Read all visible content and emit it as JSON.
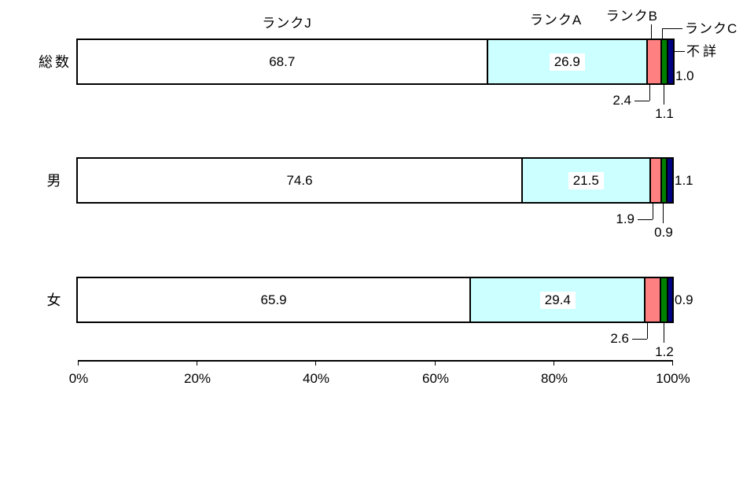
{
  "chart_data": {
    "type": "bar",
    "orientation": "horizontal",
    "stacked": true,
    "unit": "percent",
    "title": "",
    "categories": [
      "総数",
      "男",
      "女"
    ],
    "series": [
      {
        "name": "ランクJ",
        "color": "#FFFFFF",
        "values": [
          68.7,
          74.6,
          65.9
        ]
      },
      {
        "name": "ランクA",
        "color": "#CCFFFF",
        "values": [
          26.9,
          21.5,
          29.4
        ]
      },
      {
        "name": "ランクB",
        "color": "#FF8080",
        "values": [
          2.4,
          1.9,
          2.6
        ]
      },
      {
        "name": "ランクC",
        "color": "#008000",
        "values": [
          1.1,
          0.9,
          1.2
        ]
      },
      {
        "name": "不詳",
        "color": "#000080",
        "values": [
          1.0,
          1.1,
          0.9
        ]
      }
    ],
    "x_axis": {
      "range": [
        0,
        100
      ],
      "tick_step": 20,
      "tick_labels": [
        "0%",
        "20%",
        "40%",
        "60%",
        "80%",
        "100%"
      ]
    },
    "grid": "off",
    "legend_position": "top-callout-labels",
    "colors": {
      "background": "#FFFFFF",
      "bar_border": "#000000",
      "text": "#000000",
      "leader_line": "#000000"
    }
  }
}
